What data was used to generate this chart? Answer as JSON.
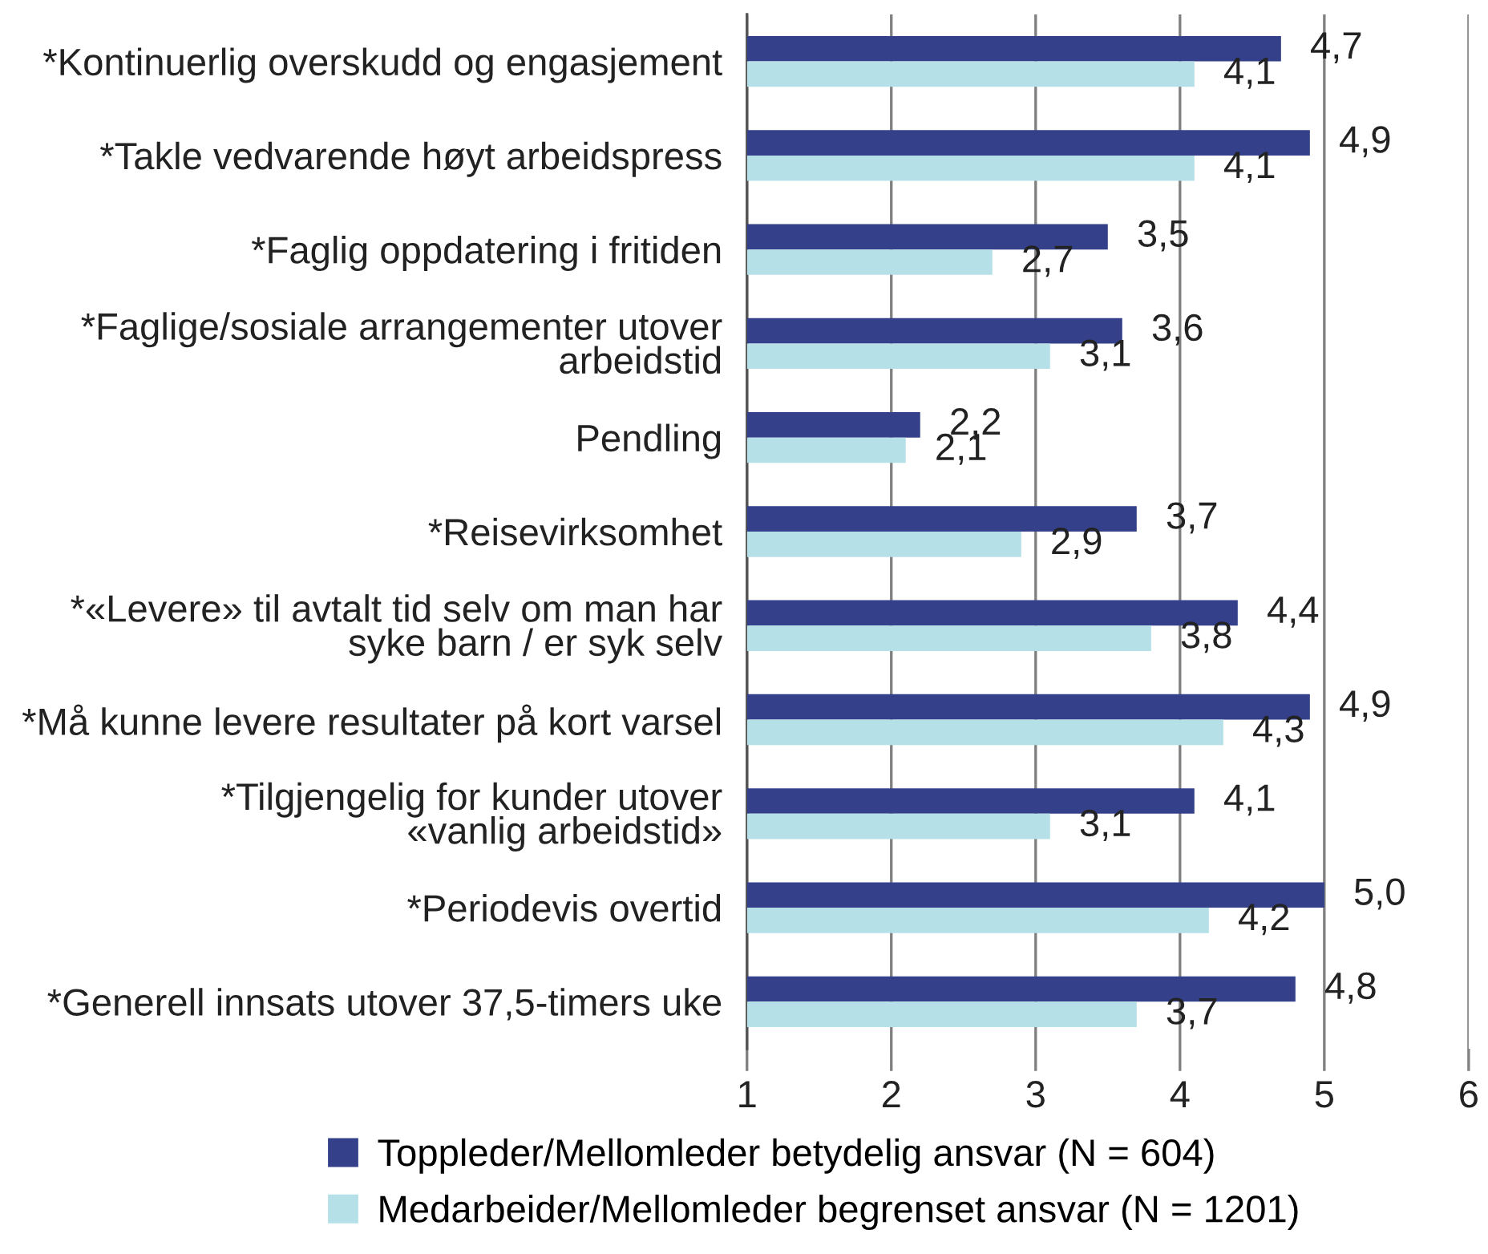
{
  "chart_data": {
    "type": "bar",
    "orientation": "horizontal",
    "categories": [
      "*Kontinuerlig overskudd og engasjement",
      "*Takle vedvarende høyt arbeidspress",
      "*Faglig oppdatering i fritiden",
      "*Faglige/sosiale arrangementer utover\narbeidstid",
      "Pendling",
      "*Reisevirksomhet",
      "*«Levere» til avtalt tid selv om man har\nsyke barn / er syk selv",
      "*Må kunne levere resultater på kort varsel",
      "*Tilgjengelig for kunder utover\n«vanlig arbeidstid»",
      "*Periodevis overtid",
      "*Generell innsats utover 37,5-timers uke"
    ],
    "series": [
      {
        "name": "Toppleder/Mellomleder betydelig ansvar (N = 604)",
        "color": "#34418a",
        "values": [
          4.7,
          4.9,
          3.5,
          3.6,
          2.2,
          3.7,
          4.4,
          4.9,
          4.1,
          5.0,
          4.8
        ],
        "value_labels": [
          "4,7",
          "4,9",
          "3,5",
          "3,6",
          "2,2",
          "3,7",
          "4,4",
          "4,9",
          "4,1",
          "5,0",
          "4,8"
        ]
      },
      {
        "name": "Medarbeider/Mellomleder begrenset ansvar (N = 1201)",
        "color": "#b5e0e8",
        "values": [
          4.1,
          4.1,
          2.7,
          3.1,
          2.1,
          2.9,
          3.8,
          4.3,
          3.1,
          4.2,
          3.7
        ],
        "value_labels": [
          "4,1",
          "4,1",
          "2,7",
          "3,1",
          "2,1",
          "2,9",
          "3,8",
          "4,3",
          "3,1",
          "4,2",
          "3,7"
        ]
      }
    ],
    "xlim": [
      1,
      6
    ],
    "xticks": [
      1,
      2,
      3,
      4,
      5,
      6
    ],
    "grid": "x",
    "legend": "bottom"
  }
}
